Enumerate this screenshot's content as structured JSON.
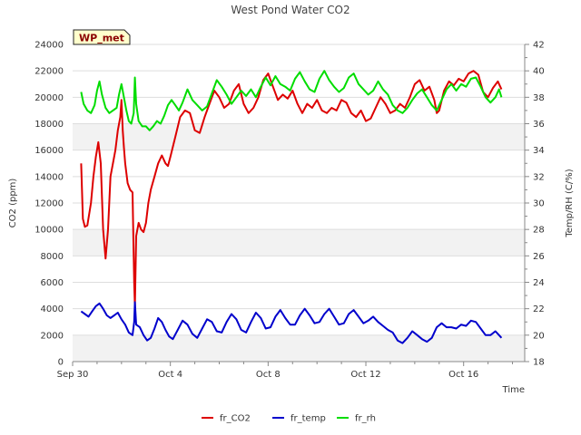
{
  "chart_data": {
    "type": "line",
    "title": "West Pond Water CO2",
    "badge": "WP_met",
    "xlabel": "Time",
    "ylabel_left": "CO2 (ppm)",
    "ylabel_right": "Temp/RH (C/%)",
    "x_start": "Sep 30",
    "x_range_days": [
      0,
      18.5
    ],
    "x_ticks": [
      {
        "label": "Sep 30",
        "day": 0
      },
      {
        "label": "Oct 4",
        "day": 4
      },
      {
        "label": "Oct 8",
        "day": 8
      },
      {
        "label": "Oct 12",
        "day": 12
      },
      {
        "label": "Oct 16",
        "day": 16
      }
    ],
    "ylim_left": [
      0,
      24000
    ],
    "yticks_left": [
      0,
      2000,
      4000,
      6000,
      8000,
      10000,
      12000,
      14000,
      16000,
      18000,
      20000,
      22000,
      24000
    ],
    "ylim_right": [
      18,
      42
    ],
    "yticks_right": [
      18,
      20,
      22,
      24,
      26,
      28,
      30,
      32,
      34,
      36,
      38,
      40,
      42
    ],
    "grid": true,
    "legend_position": "bottom",
    "series": [
      {
        "name": "fr_CO2",
        "axis": "left",
        "color": "#dd0000",
        "points": [
          [
            0.35,
            15000
          ],
          [
            0.42,
            10800
          ],
          [
            0.5,
            10200
          ],
          [
            0.6,
            10300
          ],
          [
            0.75,
            12000
          ],
          [
            0.85,
            14000
          ],
          [
            0.95,
            15500
          ],
          [
            1.05,
            16600
          ],
          [
            1.15,
            15000
          ],
          [
            1.25,
            10000
          ],
          [
            1.35,
            7800
          ],
          [
            1.45,
            10000
          ],
          [
            1.55,
            14000
          ],
          [
            1.65,
            15000
          ],
          [
            1.75,
            16000
          ],
          [
            1.85,
            17500
          ],
          [
            1.95,
            18500
          ],
          [
            2.0,
            19800
          ],
          [
            2.05,
            17500
          ],
          [
            2.1,
            16200
          ],
          [
            2.15,
            15000
          ],
          [
            2.25,
            13500
          ],
          [
            2.35,
            13000
          ],
          [
            2.45,
            12800
          ],
          [
            2.52,
            6000
          ],
          [
            2.55,
            4200
          ],
          [
            2.6,
            9500
          ],
          [
            2.7,
            10500
          ],
          [
            2.8,
            10000
          ],
          [
            2.9,
            9800
          ],
          [
            3.0,
            10500
          ],
          [
            3.1,
            12000
          ],
          [
            3.2,
            13000
          ],
          [
            3.35,
            14000
          ],
          [
            3.5,
            15000
          ],
          [
            3.65,
            15600
          ],
          [
            3.8,
            15000
          ],
          [
            3.9,
            14800
          ],
          [
            4.0,
            15500
          ],
          [
            4.2,
            17000
          ],
          [
            4.4,
            18500
          ],
          [
            4.6,
            19000
          ],
          [
            4.8,
            18800
          ],
          [
            5.0,
            17500
          ],
          [
            5.2,
            17300
          ],
          [
            5.4,
            18500
          ],
          [
            5.6,
            19500
          ],
          [
            5.8,
            20500
          ],
          [
            6.0,
            20000
          ],
          [
            6.2,
            19200
          ],
          [
            6.4,
            19500
          ],
          [
            6.6,
            20500
          ],
          [
            6.8,
            21000
          ],
          [
            7.0,
            19500
          ],
          [
            7.2,
            18800
          ],
          [
            7.4,
            19200
          ],
          [
            7.6,
            20000
          ],
          [
            7.8,
            21300
          ],
          [
            8.0,
            21800
          ],
          [
            8.2,
            20800
          ],
          [
            8.4,
            19800
          ],
          [
            8.6,
            20200
          ],
          [
            8.8,
            19900
          ],
          [
            9.0,
            20500
          ],
          [
            9.2,
            19500
          ],
          [
            9.4,
            18800
          ],
          [
            9.6,
            19500
          ],
          [
            9.8,
            19200
          ],
          [
            10.0,
            19800
          ],
          [
            10.2,
            19000
          ],
          [
            10.4,
            18800
          ],
          [
            10.6,
            19200
          ],
          [
            10.8,
            19000
          ],
          [
            11.0,
            19800
          ],
          [
            11.2,
            19600
          ],
          [
            11.4,
            18800
          ],
          [
            11.6,
            18500
          ],
          [
            11.8,
            19000
          ],
          [
            12.0,
            18200
          ],
          [
            12.2,
            18400
          ],
          [
            12.4,
            19200
          ],
          [
            12.6,
            20000
          ],
          [
            12.8,
            19500
          ],
          [
            13.0,
            18800
          ],
          [
            13.2,
            19000
          ],
          [
            13.4,
            19500
          ],
          [
            13.6,
            19200
          ],
          [
            13.8,
            20000
          ],
          [
            14.0,
            21000
          ],
          [
            14.2,
            21300
          ],
          [
            14.4,
            20500
          ],
          [
            14.6,
            20800
          ],
          [
            14.8,
            19800
          ],
          [
            14.9,
            18800
          ],
          [
            15.0,
            19000
          ],
          [
            15.2,
            20500
          ],
          [
            15.4,
            21200
          ],
          [
            15.6,
            20900
          ],
          [
            15.8,
            21400
          ],
          [
            16.0,
            21200
          ],
          [
            16.2,
            21800
          ],
          [
            16.4,
            22000
          ],
          [
            16.6,
            21700
          ],
          [
            16.8,
            20400
          ],
          [
            17.0,
            20000
          ],
          [
            17.2,
            20700
          ],
          [
            17.4,
            21200
          ],
          [
            17.55,
            20600
          ]
        ]
      },
      {
        "name": "fr_temp",
        "axis": "right",
        "color": "#0000cc",
        "points": [
          [
            0.35,
            21.8
          ],
          [
            0.5,
            21.6
          ],
          [
            0.65,
            21.4
          ],
          [
            0.8,
            21.8
          ],
          [
            0.95,
            22.2
          ],
          [
            1.1,
            22.4
          ],
          [
            1.25,
            22.0
          ],
          [
            1.4,
            21.5
          ],
          [
            1.55,
            21.3
          ],
          [
            1.7,
            21.5
          ],
          [
            1.85,
            21.7
          ],
          [
            2.0,
            21.2
          ],
          [
            2.15,
            20.8
          ],
          [
            2.3,
            20.2
          ],
          [
            2.45,
            20.0
          ],
          [
            2.52,
            21.0
          ],
          [
            2.55,
            22.5
          ],
          [
            2.6,
            20.8
          ],
          [
            2.75,
            20.6
          ],
          [
            2.9,
            20.0
          ],
          [
            3.05,
            19.6
          ],
          [
            3.2,
            19.8
          ],
          [
            3.35,
            20.5
          ],
          [
            3.5,
            21.3
          ],
          [
            3.65,
            21.0
          ],
          [
            3.8,
            20.4
          ],
          [
            3.95,
            19.9
          ],
          [
            4.1,
            19.7
          ],
          [
            4.3,
            20.4
          ],
          [
            4.5,
            21.1
          ],
          [
            4.7,
            20.8
          ],
          [
            4.9,
            20.1
          ],
          [
            5.1,
            19.8
          ],
          [
            5.3,
            20.5
          ],
          [
            5.5,
            21.2
          ],
          [
            5.7,
            21.0
          ],
          [
            5.9,
            20.3
          ],
          [
            6.1,
            20.2
          ],
          [
            6.3,
            21.0
          ],
          [
            6.5,
            21.6
          ],
          [
            6.7,
            21.2
          ],
          [
            6.9,
            20.4
          ],
          [
            7.1,
            20.2
          ],
          [
            7.3,
            21.0
          ],
          [
            7.5,
            21.7
          ],
          [
            7.7,
            21.3
          ],
          [
            7.9,
            20.5
          ],
          [
            8.1,
            20.6
          ],
          [
            8.3,
            21.4
          ],
          [
            8.5,
            21.9
          ],
          [
            8.7,
            21.3
          ],
          [
            8.9,
            20.8
          ],
          [
            9.1,
            20.8
          ],
          [
            9.3,
            21.5
          ],
          [
            9.5,
            22.0
          ],
          [
            9.7,
            21.5
          ],
          [
            9.9,
            20.9
          ],
          [
            10.1,
            21.0
          ],
          [
            10.3,
            21.6
          ],
          [
            10.5,
            22.0
          ],
          [
            10.7,
            21.4
          ],
          [
            10.9,
            20.8
          ],
          [
            11.1,
            20.9
          ],
          [
            11.3,
            21.6
          ],
          [
            11.5,
            21.9
          ],
          [
            11.7,
            21.4
          ],
          [
            11.9,
            20.9
          ],
          [
            12.1,
            21.1
          ],
          [
            12.3,
            21.4
          ],
          [
            12.5,
            21.0
          ],
          [
            12.7,
            20.7
          ],
          [
            12.9,
            20.4
          ],
          [
            13.1,
            20.2
          ],
          [
            13.3,
            19.6
          ],
          [
            13.5,
            19.4
          ],
          [
            13.7,
            19.8
          ],
          [
            13.9,
            20.3
          ],
          [
            14.1,
            20.0
          ],
          [
            14.3,
            19.7
          ],
          [
            14.5,
            19.5
          ],
          [
            14.7,
            19.8
          ],
          [
            14.9,
            20.6
          ],
          [
            15.1,
            20.9
          ],
          [
            15.3,
            20.6
          ],
          [
            15.5,
            20.6
          ],
          [
            15.7,
            20.5
          ],
          [
            15.9,
            20.8
          ],
          [
            16.1,
            20.7
          ],
          [
            16.3,
            21.1
          ],
          [
            16.5,
            21.0
          ],
          [
            16.7,
            20.5
          ],
          [
            16.9,
            20.0
          ],
          [
            17.1,
            20.0
          ],
          [
            17.3,
            20.3
          ],
          [
            17.45,
            20.0
          ],
          [
            17.55,
            19.8
          ]
        ]
      },
      {
        "name": "fr_rh",
        "axis": "right",
        "color": "#00dd00",
        "points": [
          [
            0.35,
            38.4
          ],
          [
            0.45,
            37.5
          ],
          [
            0.6,
            37.0
          ],
          [
            0.75,
            36.8
          ],
          [
            0.9,
            37.4
          ],
          [
            1.0,
            38.5
          ],
          [
            1.1,
            39.2
          ],
          [
            1.2,
            38.2
          ],
          [
            1.35,
            37.2
          ],
          [
            1.5,
            36.8
          ],
          [
            1.65,
            37.0
          ],
          [
            1.8,
            37.2
          ],
          [
            1.9,
            38.2
          ],
          [
            2.0,
            39.0
          ],
          [
            2.1,
            38.0
          ],
          [
            2.2,
            37.0
          ],
          [
            2.3,
            36.2
          ],
          [
            2.4,
            36.0
          ],
          [
            2.5,
            36.8
          ],
          [
            2.55,
            39.5
          ],
          [
            2.6,
            37.5
          ],
          [
            2.7,
            36.2
          ],
          [
            2.85,
            35.8
          ],
          [
            3.0,
            35.8
          ],
          [
            3.15,
            35.5
          ],
          [
            3.3,
            35.8
          ],
          [
            3.45,
            36.2
          ],
          [
            3.6,
            36.0
          ],
          [
            3.75,
            36.6
          ],
          [
            3.9,
            37.4
          ],
          [
            4.05,
            37.8
          ],
          [
            4.2,
            37.4
          ],
          [
            4.35,
            37.0
          ],
          [
            4.5,
            37.6
          ],
          [
            4.7,
            38.6
          ],
          [
            4.9,
            37.8
          ],
          [
            5.1,
            37.4
          ],
          [
            5.3,
            37.0
          ],
          [
            5.5,
            37.3
          ],
          [
            5.7,
            38.3
          ],
          [
            5.9,
            39.3
          ],
          [
            6.1,
            38.8
          ],
          [
            6.3,
            38.2
          ],
          [
            6.5,
            37.5
          ],
          [
            6.7,
            38.0
          ],
          [
            6.9,
            38.5
          ],
          [
            7.1,
            38.1
          ],
          [
            7.3,
            38.6
          ],
          [
            7.5,
            38.0
          ],
          [
            7.7,
            38.8
          ],
          [
            7.9,
            39.5
          ],
          [
            8.1,
            38.9
          ],
          [
            8.3,
            39.6
          ],
          [
            8.5,
            39.0
          ],
          [
            8.7,
            38.8
          ],
          [
            8.9,
            38.5
          ],
          [
            9.1,
            39.4
          ],
          [
            9.3,
            39.9
          ],
          [
            9.5,
            39.2
          ],
          [
            9.7,
            38.6
          ],
          [
            9.9,
            38.4
          ],
          [
            10.1,
            39.4
          ],
          [
            10.3,
            40.0
          ],
          [
            10.5,
            39.3
          ],
          [
            10.7,
            38.8
          ],
          [
            10.9,
            38.4
          ],
          [
            11.1,
            38.7
          ],
          [
            11.3,
            39.5
          ],
          [
            11.5,
            39.8
          ],
          [
            11.7,
            39.0
          ],
          [
            11.9,
            38.6
          ],
          [
            12.1,
            38.2
          ],
          [
            12.3,
            38.5
          ],
          [
            12.5,
            39.2
          ],
          [
            12.7,
            38.6
          ],
          [
            12.9,
            38.2
          ],
          [
            13.1,
            37.4
          ],
          [
            13.3,
            37.0
          ],
          [
            13.5,
            36.8
          ],
          [
            13.7,
            37.2
          ],
          [
            13.9,
            37.8
          ],
          [
            14.1,
            38.3
          ],
          [
            14.3,
            38.6
          ],
          [
            14.5,
            38.0
          ],
          [
            14.7,
            37.4
          ],
          [
            14.9,
            37.0
          ],
          [
            15.1,
            37.8
          ],
          [
            15.3,
            38.6
          ],
          [
            15.5,
            39.0
          ],
          [
            15.7,
            38.5
          ],
          [
            15.9,
            39.0
          ],
          [
            16.1,
            38.8
          ],
          [
            16.3,
            39.4
          ],
          [
            16.5,
            39.5
          ],
          [
            16.7,
            38.8
          ],
          [
            16.9,
            38.0
          ],
          [
            17.1,
            37.6
          ],
          [
            17.3,
            38.0
          ],
          [
            17.45,
            38.6
          ],
          [
            17.55,
            38.0
          ]
        ]
      }
    ]
  }
}
